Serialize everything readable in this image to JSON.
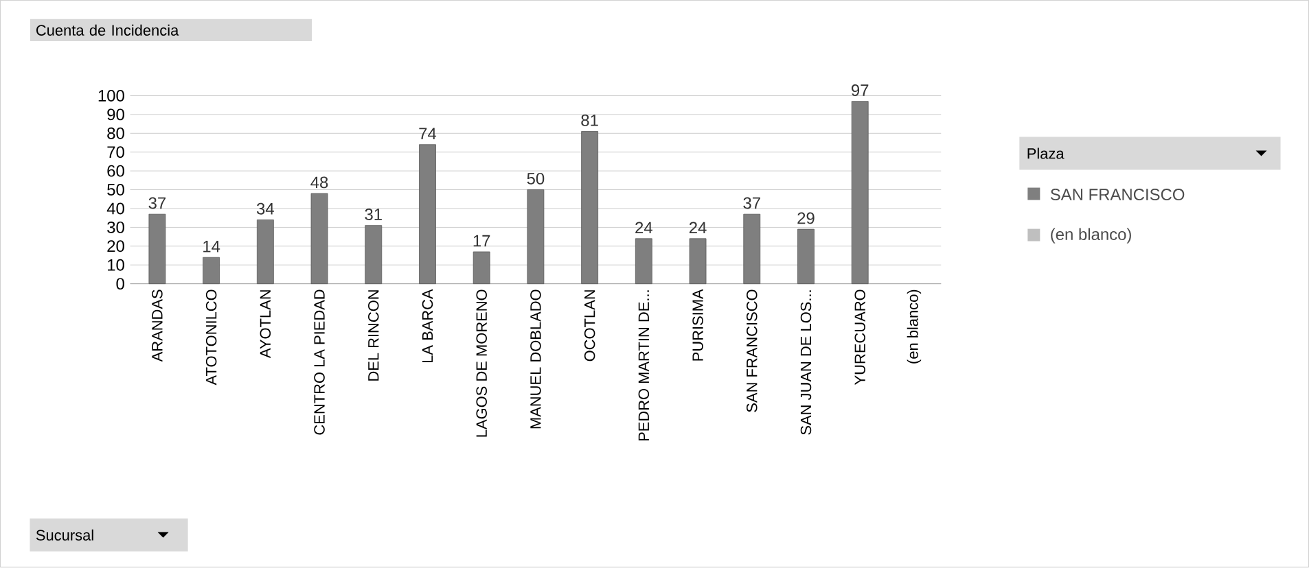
{
  "chart_data": {
    "type": "bar",
    "title": "Cuenta de Incidencia",
    "annotations": [
      "Sucursal"
    ],
    "legend_title": "Plaza",
    "categories": [
      "ARANDAS",
      "ATOTONILCO",
      "AYOTLAN",
      "CENTRO LA PIEDAD",
      "DEL RINCON",
      "LA BARCA",
      "LAGOS DE MORENO",
      "MANUEL DOBLADO",
      "OCOTLAN",
      "PEDRO MARTIN DE...",
      "PURISIMA",
      "SAN FRANCISCO",
      "SAN JUAN DE LOS...",
      "YURECUARO",
      "(en blanco)"
    ],
    "series": [
      {
        "name": "SAN FRANCISCO",
        "color": "#7f7f7f",
        "values": [
          37,
          14,
          34,
          48,
          31,
          74,
          17,
          50,
          81,
          24,
          24,
          37,
          29,
          97,
          null
        ]
      },
      {
        "name": "(en blanco)",
        "color": "#bfbfbf",
        "values": [
          null,
          null,
          null,
          null,
          null,
          null,
          null,
          null,
          null,
          null,
          null,
          null,
          null,
          null,
          null
        ]
      }
    ],
    "ylim": [
      0,
      100
    ],
    "yticks": [
      0,
      10,
      20,
      30,
      40,
      50,
      60,
      70,
      80,
      90,
      100
    ],
    "grid": "y",
    "legend": "right",
    "data_labels": true
  }
}
